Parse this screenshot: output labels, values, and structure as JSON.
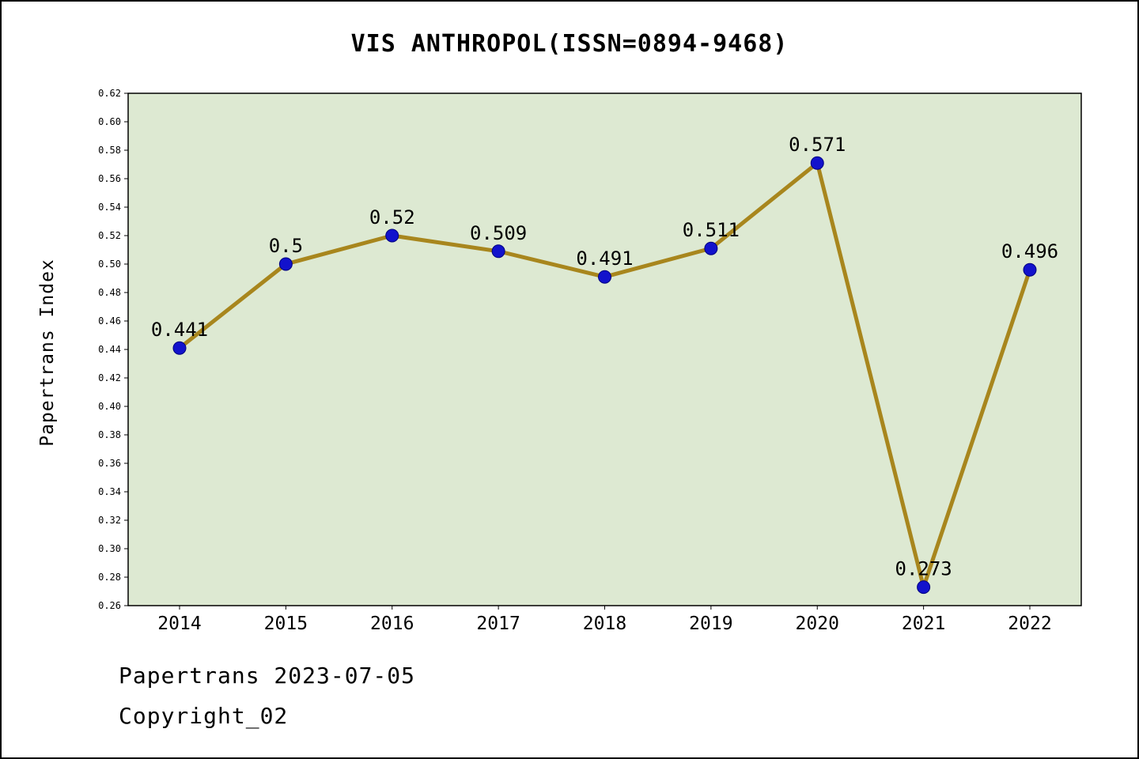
{
  "header": {
    "title": "VIS ANTHROPOL(ISSN=0894-9468)"
  },
  "footer": {
    "line1": "Papertrans 2023-07-05",
    "line2": "Copyright_02"
  },
  "chart_data": {
    "type": "line",
    "title": "VIS ANTHROPOL(ISSN=0894-9468)",
    "xlabel": "",
    "ylabel": "Papertrans Index",
    "categories": [
      "2014",
      "2015",
      "2016",
      "2017",
      "2018",
      "2019",
      "2020",
      "2021",
      "2022"
    ],
    "values": [
      0.441,
      0.5,
      0.52,
      0.509,
      0.491,
      0.511,
      0.571,
      0.273,
      0.496
    ],
    "point_labels": [
      "0.441",
      "0.5",
      "0.52",
      "0.509",
      "0.491",
      "0.511",
      "0.571",
      "0.273",
      "0.496"
    ],
    "ylim": [
      0.26,
      0.62
    ],
    "ytick_step": 0.02,
    "grid": false,
    "legend": "none",
    "colors": {
      "line": "#a8861d",
      "marker": "#1212cc",
      "marker_edge": "#000080",
      "plot_background": "#dde9d2",
      "axis": "#000000",
      "text": "#000000"
    }
  }
}
